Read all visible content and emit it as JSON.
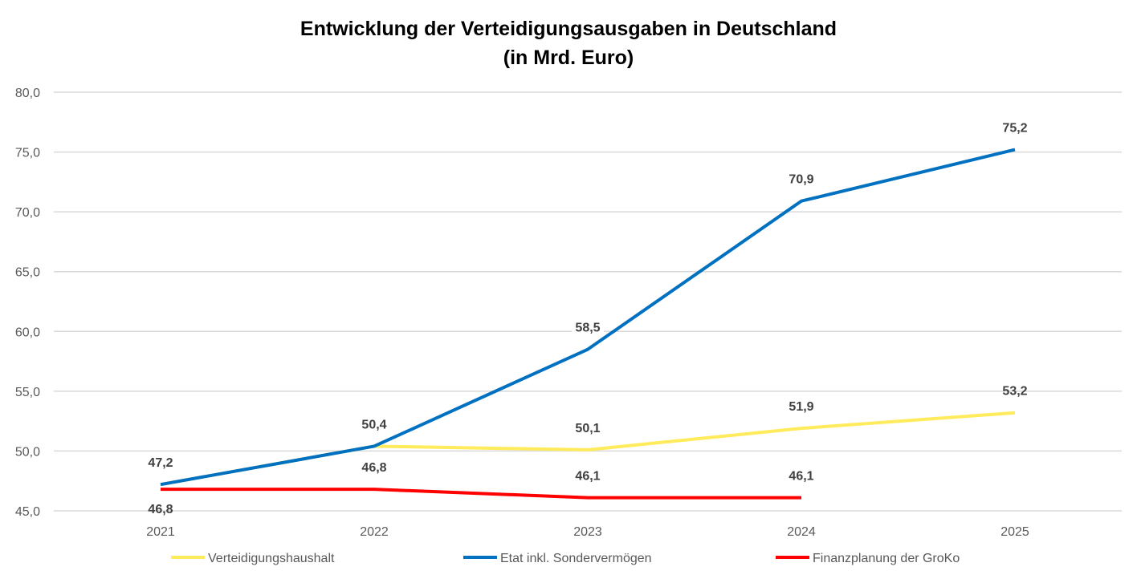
{
  "chart_data": {
    "type": "line",
    "title": [
      "Entwicklung  der Verteidigungsausgaben  in Deutschland",
      "(in Mrd. Euro)"
    ],
    "xlabel": "",
    "ylabel": "",
    "categories": [
      "2021",
      "2022",
      "2023",
      "2024",
      "2025"
    ],
    "ylim": [
      45,
      80
    ],
    "yticks": [
      "45,0",
      "50,0",
      "55,0",
      "60,0",
      "65,0",
      "70,0",
      "75,0",
      "80,0"
    ],
    "grid": true,
    "legend_position": "bottom",
    "series": [
      {
        "name": "Verteidigungshaushalt",
        "color": "#FFEB5C",
        "values": [
          47.2,
          50.4,
          50.1,
          51.9,
          53.2
        ],
        "labels": [
          null,
          null,
          "50,1",
          "51,9",
          "53,2"
        ]
      },
      {
        "name": "Etat inkl. Sondervermögen",
        "color": "#0070C0",
        "values": [
          47.2,
          50.4,
          58.5,
          70.9,
          75.2
        ],
        "labels": [
          "47,2",
          "50,4",
          "58,5",
          "70,9",
          "75,2"
        ]
      },
      {
        "name": "Finanzplanung der GroKo",
        "color": "#FF0000",
        "values": [
          46.8,
          46.8,
          46.1,
          46.1,
          null
        ],
        "labels": [
          "46,8",
          "46,8",
          "46,1",
          "46,1",
          null
        ]
      }
    ]
  }
}
